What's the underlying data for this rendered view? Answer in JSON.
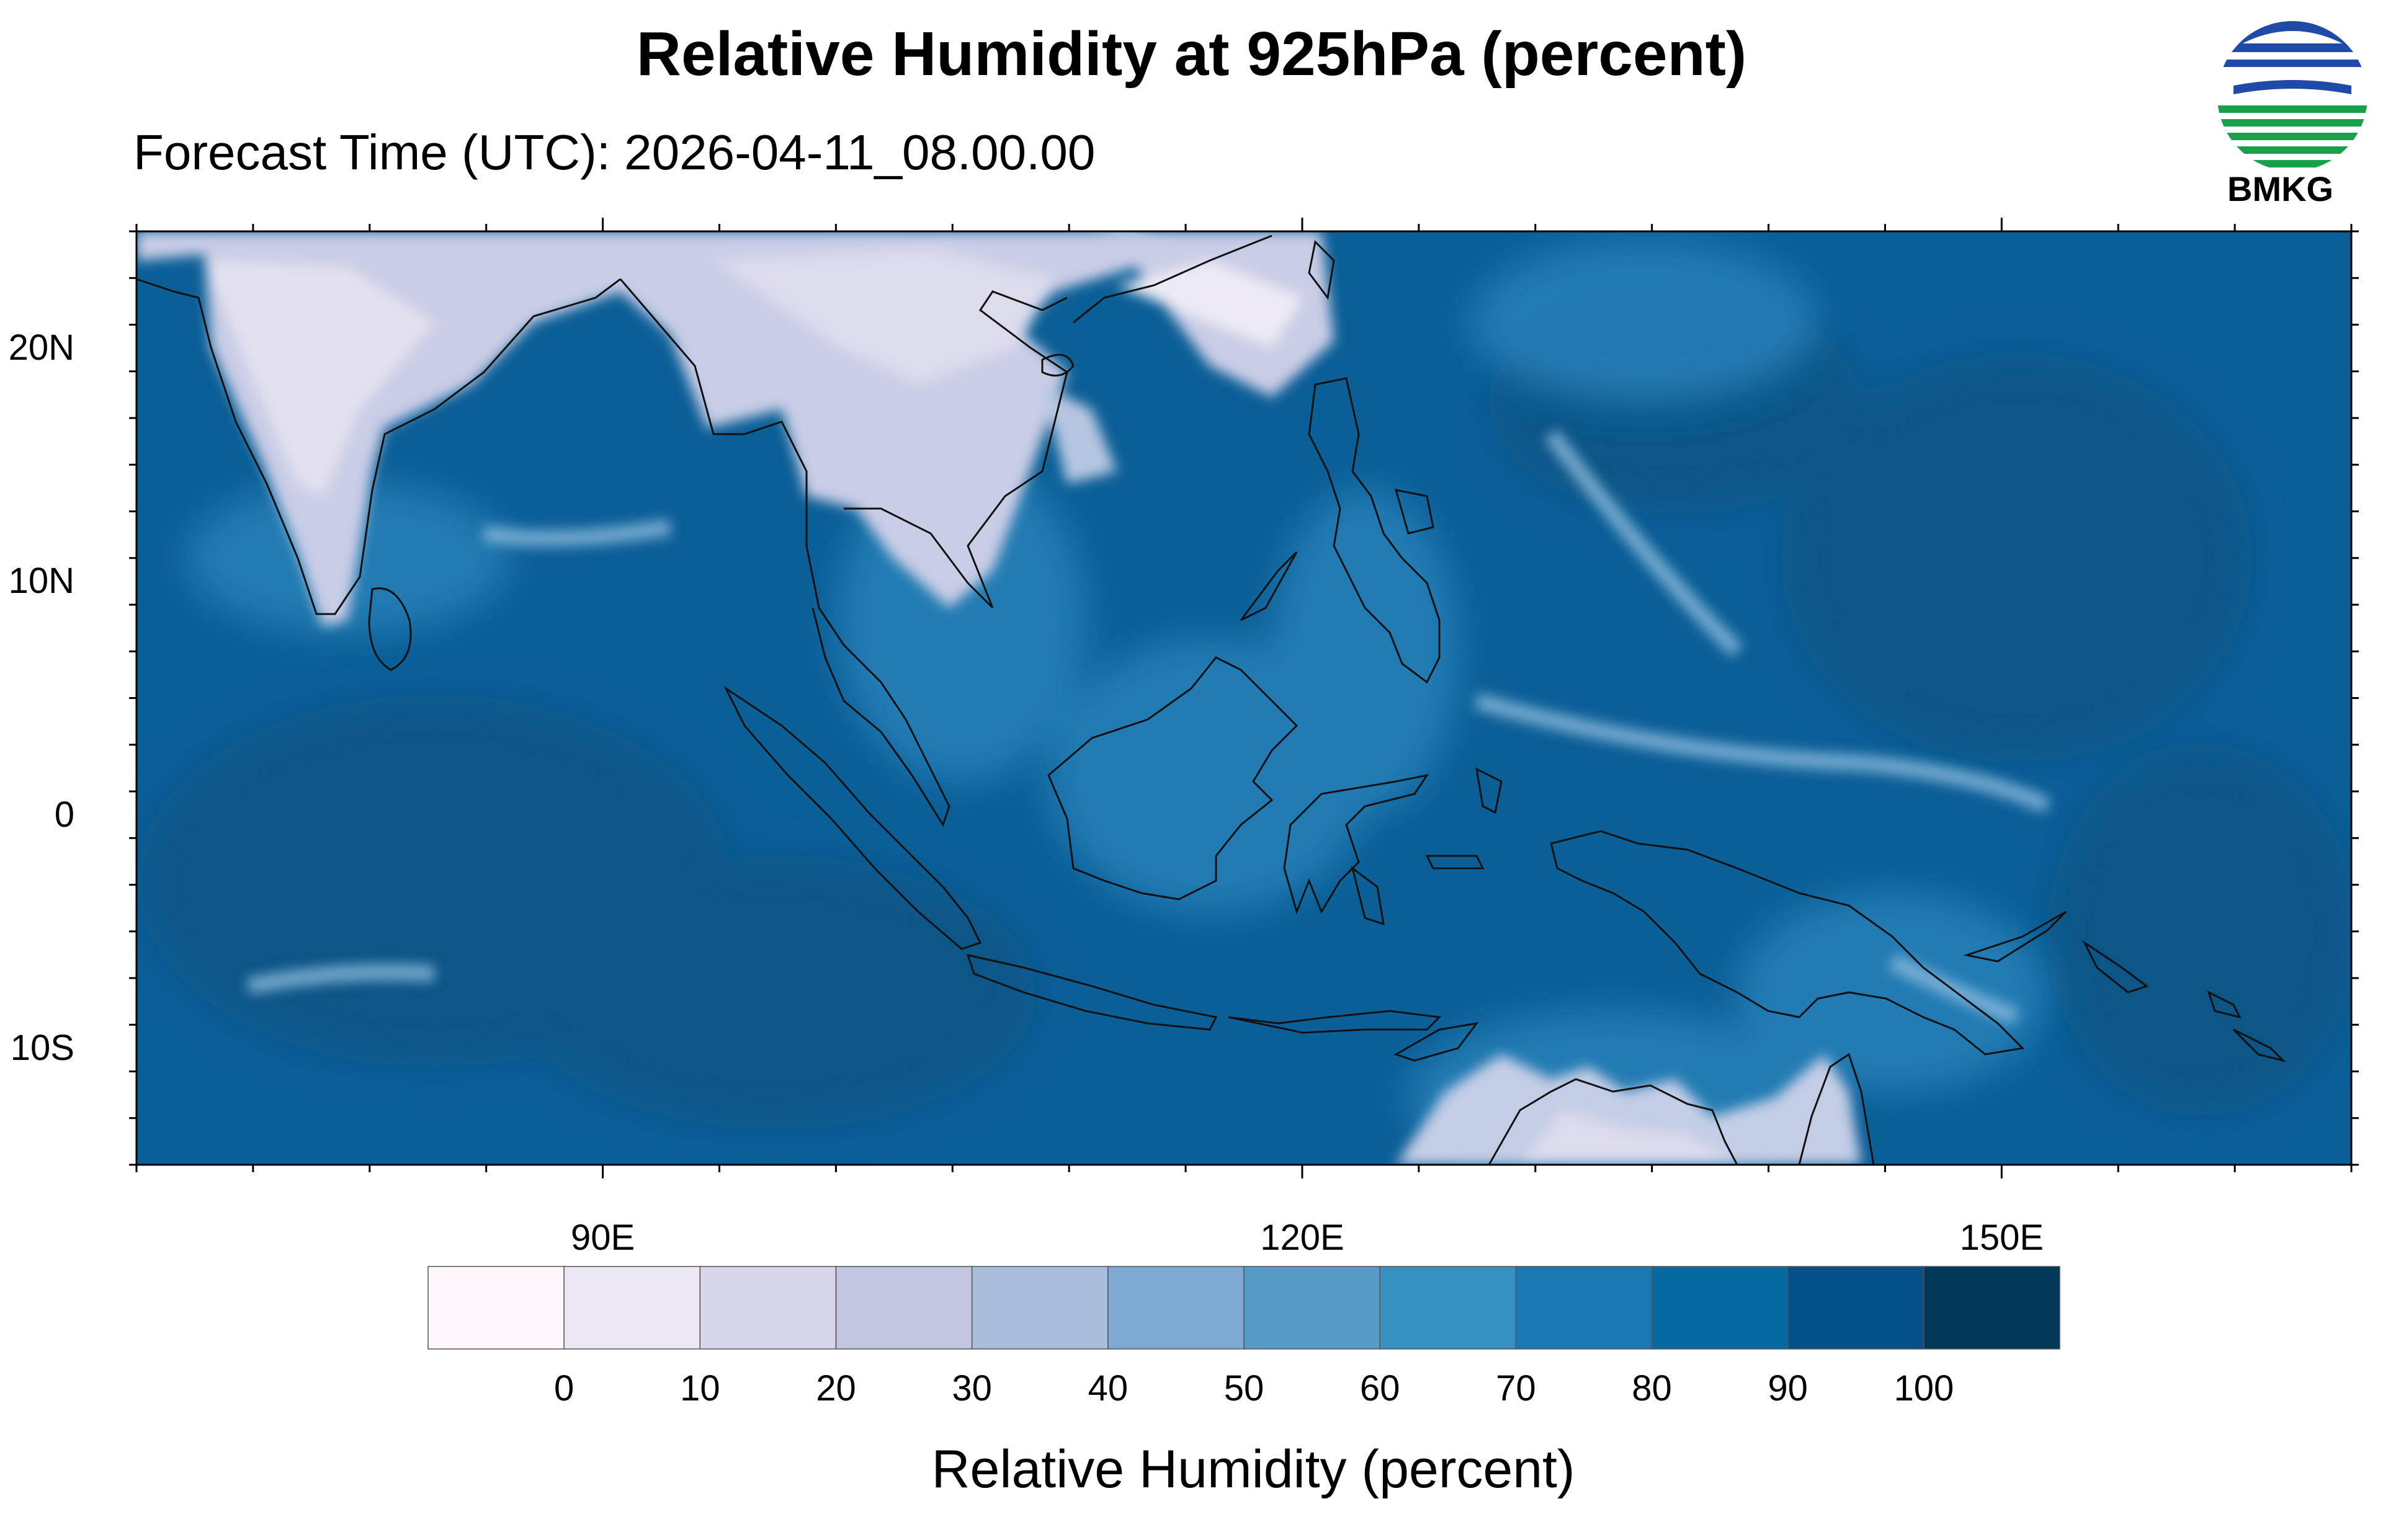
{
  "title": "Relative Humidity at 925hPa (percent)",
  "subtitle": "Forecast Time (UTC): 2026-04-11_08.00.00",
  "logo_text": "BMKG",
  "map": {
    "lon_range": [
      70,
      165
    ],
    "lat_range": [
      -15,
      25
    ],
    "lat_ticks": [
      {
        "lat": 20,
        "label": "20N"
      },
      {
        "lat": 10,
        "label": "10N"
      },
      {
        "lat": 0,
        "label": "0"
      },
      {
        "lat": -10,
        "label": "10S"
      }
    ],
    "lon_ticks": [
      {
        "lon": 90,
        "label": "90E"
      },
      {
        "lon": 120,
        "label": "120E"
      },
      {
        "lon": 150,
        "label": "150E"
      }
    ],
    "background_color": "#0b5f97",
    "land_dry_color": "#e3e1ef",
    "coast_color": "#111111"
  },
  "colorbar": {
    "title": "Relative Humidity (percent)",
    "labels": [
      "0",
      "10",
      "20",
      "30",
      "40",
      "50",
      "60",
      "70",
      "80",
      "90",
      "100"
    ],
    "colors": [
      "#fff7fb",
      "#ece7f2",
      "#d8d6ea",
      "#c2c6e1",
      "#a6bddb",
      "#7ea9d0",
      "#569bc8",
      "#3690c0",
      "#1b78b4",
      "#0868a4",
      "#045089",
      "#023858"
    ]
  }
}
